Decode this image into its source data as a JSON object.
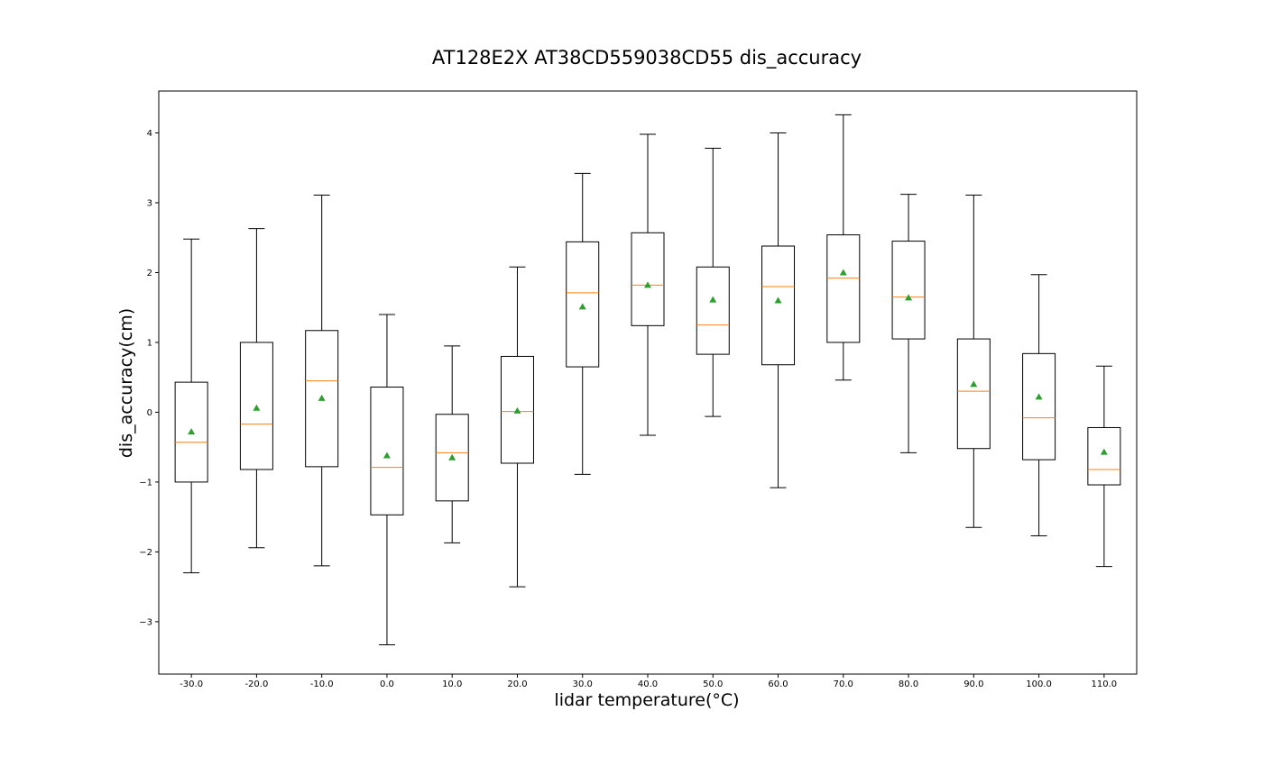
{
  "chart_data": {
    "type": "box",
    "title": "AT128E2X AT38CD559038CD55 dis_accuracy",
    "xlabel": "lidar temperature(°C)",
    "ylabel": "dis_accuracy(cm)",
    "ylim": [
      -3.75,
      4.6
    ],
    "y_ticks": [
      -3,
      -2,
      -1,
      0,
      1,
      2,
      3,
      4
    ],
    "y_tick_labels": [
      "−3",
      "−2",
      "−1",
      "0",
      "1",
      "2",
      "3",
      "4"
    ],
    "categories": [
      "-30.0",
      "-20.0",
      "-10.0",
      "0.0",
      "10.0",
      "20.0",
      "30.0",
      "40.0",
      "50.0",
      "60.0",
      "70.0",
      "80.0",
      "90.0",
      "100.0",
      "110.0"
    ],
    "grid": false,
    "legend": "none",
    "colors": {
      "box": "#000000",
      "median": "#ff7f0e",
      "mean": "#2ca02c"
    },
    "boxes": [
      {
        "whisker_low": -2.3,
        "q1": -1.0,
        "median": -0.43,
        "q3": 0.43,
        "whisker_high": 2.48,
        "mean": -0.28
      },
      {
        "whisker_low": -1.94,
        "q1": -0.82,
        "median": -0.17,
        "q3": 1.0,
        "whisker_high": 2.63,
        "mean": 0.06
      },
      {
        "whisker_low": -2.2,
        "q1": -0.78,
        "median": 0.45,
        "q3": 1.17,
        "whisker_high": 3.11,
        "mean": 0.2
      },
      {
        "whisker_low": -3.33,
        "q1": -1.47,
        "median": -0.79,
        "q3": 0.36,
        "whisker_high": 1.4,
        "mean": -0.62
      },
      {
        "whisker_low": -1.87,
        "q1": -1.27,
        "median": -0.58,
        "q3": -0.03,
        "whisker_high": 0.95,
        "mean": -0.65
      },
      {
        "whisker_low": -2.5,
        "q1": -0.73,
        "median": 0.01,
        "q3": 0.8,
        "whisker_high": 2.08,
        "mean": 0.02
      },
      {
        "whisker_low": -0.89,
        "q1": 0.65,
        "median": 1.71,
        "q3": 2.44,
        "whisker_high": 3.42,
        "mean": 1.51
      },
      {
        "whisker_low": -0.33,
        "q1": 1.24,
        "median": 1.82,
        "q3": 2.57,
        "whisker_high": 3.98,
        "mean": 1.82
      },
      {
        "whisker_low": -0.06,
        "q1": 0.83,
        "median": 1.25,
        "q3": 2.08,
        "whisker_high": 3.78,
        "mean": 1.61
      },
      {
        "whisker_low": -1.08,
        "q1": 0.68,
        "median": 1.8,
        "q3": 2.38,
        "whisker_high": 4.0,
        "mean": 1.6
      },
      {
        "whisker_low": 0.46,
        "q1": 1.0,
        "median": 1.92,
        "q3": 2.54,
        "whisker_high": 4.26,
        "mean": 2.0
      },
      {
        "whisker_low": -0.58,
        "q1": 1.05,
        "median": 1.65,
        "q3": 2.45,
        "whisker_high": 3.12,
        "mean": 1.64
      },
      {
        "whisker_low": -1.65,
        "q1": -0.52,
        "median": 0.3,
        "q3": 1.05,
        "whisker_high": 3.11,
        "mean": 0.4
      },
      {
        "whisker_low": -1.77,
        "q1": -0.68,
        "median": -0.08,
        "q3": 0.84,
        "whisker_high": 1.97,
        "mean": 0.22
      },
      {
        "whisker_low": -2.21,
        "q1": -1.04,
        "median": -0.82,
        "q3": -0.22,
        "whisker_high": 0.66,
        "mean": -0.57
      }
    ]
  }
}
